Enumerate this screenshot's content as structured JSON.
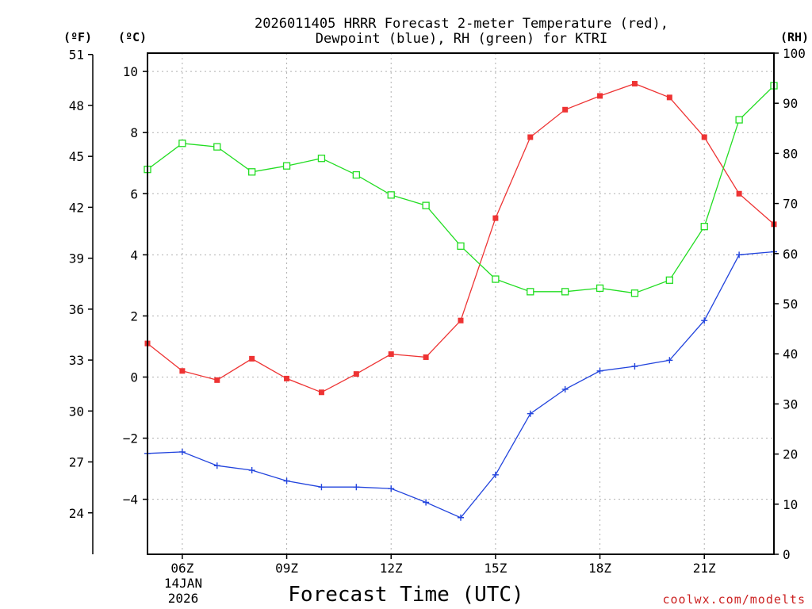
{
  "chart_data": {
    "type": "line",
    "title_line1": "2026011405 HRRR Forecast 2-meter Temperature (red),",
    "title_line2": "Dewpoint (blue), RH (green) for KTRI",
    "xlabel": "Forecast Time (UTC)",
    "date_line1": "14JAN",
    "date_line2": "2026",
    "credit": "coolwx.com/modelts",
    "units": {
      "fahrenheit": "(ºF)",
      "celsius": "(ºC)",
      "rh": "(RH)"
    },
    "x_hours": [
      5,
      6,
      7,
      8,
      9,
      10,
      11,
      12,
      13,
      14,
      15,
      16,
      17,
      18,
      19,
      20,
      21,
      22,
      23
    ],
    "x_ticks": [
      {
        "hour": 6,
        "label": "06Z"
      },
      {
        "hour": 9,
        "label": "09Z"
      },
      {
        "hour": 12,
        "label": "12Z"
      },
      {
        "hour": 15,
        "label": "15Z"
      },
      {
        "hour": 18,
        "label": "18Z"
      },
      {
        "hour": 21,
        "label": "21Z"
      }
    ],
    "xlim": [
      5,
      23
    ],
    "celsius_axis": {
      "ylim": [
        -5.8,
        10.6
      ],
      "ticks": [
        10,
        8,
        6,
        4,
        2,
        0,
        -2,
        -4
      ]
    },
    "fahrenheit_axis": {
      "ylim": [
        22,
        51
      ],
      "ticks": [
        51,
        48,
        45,
        42,
        39,
        36,
        33,
        30,
        27,
        24
      ]
    },
    "rh_axis": {
      "ylim": [
        0,
        100
      ],
      "ticks": [
        100,
        90,
        80,
        70,
        60,
        50,
        40,
        30,
        20,
        10,
        0
      ]
    },
    "series": [
      {
        "name": "Temperature",
        "axis": "celsius",
        "color": "#ee3333",
        "marker": "filled-square",
        "values": [
          1.1,
          0.2,
          -0.1,
          0.6,
          -0.05,
          -0.5,
          0.1,
          0.75,
          0.65,
          1.85,
          5.2,
          7.85,
          8.75,
          9.2,
          9.6,
          9.15,
          7.85,
          6.0,
          5.0
        ]
      },
      {
        "name": "Dewpoint",
        "axis": "celsius",
        "color": "#2244dd",
        "marker": "plus",
        "values": [
          -2.5,
          -2.45,
          -2.9,
          -3.05,
          -3.4,
          -3.6,
          -3.6,
          -3.65,
          -4.1,
          -4.6,
          -3.2,
          -1.2,
          -0.4,
          0.2,
          0.35,
          0.55,
          1.85,
          4.0,
          4.1
        ]
      },
      {
        "name": "RH",
        "axis": "rh",
        "color": "#22dd22",
        "marker": "open-square",
        "values": [
          76.8,
          82,
          81.3,
          76.3,
          77.5,
          79,
          75.7,
          71.7,
          69.6,
          61.5,
          54.9,
          52.4,
          52.4,
          53.1,
          52.1,
          54.7,
          65.4,
          86.7,
          93.5
        ]
      }
    ]
  }
}
